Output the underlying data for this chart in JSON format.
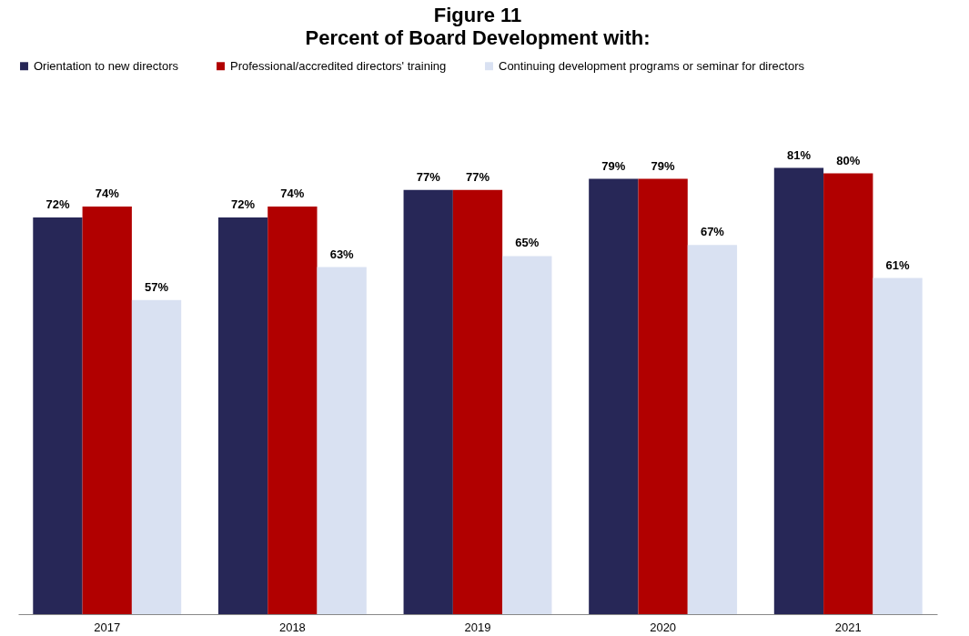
{
  "chart_data": {
    "type": "bar",
    "title": "Figure 11",
    "subtitle": "Percent of Board Development with:",
    "categories": [
      "2017",
      "2018",
      "2019",
      "2020",
      "2021"
    ],
    "series": [
      {
        "name": "Orientation to new directors",
        "color": "#272757",
        "values": [
          72,
          72,
          77,
          79,
          81
        ],
        "value_labels": [
          "72%",
          "72%",
          "77%",
          "79%",
          "81%"
        ]
      },
      {
        "name": "Professional/accredited directors' training",
        "color": "#b10000",
        "values": [
          74,
          74,
          77,
          79,
          80
        ],
        "value_labels": [
          "74%",
          "74%",
          "77%",
          "79%",
          "80%"
        ]
      },
      {
        "name": "Continuing development programs or seminar for directors",
        "color": "#d9e1f2",
        "values": [
          57,
          63,
          65,
          67,
          61
        ],
        "value_labels": [
          "57%",
          "63%",
          "65%",
          "67%",
          "61%"
        ]
      }
    ],
    "legend": "top",
    "grid": false,
    "tick_labels": "x"
  }
}
